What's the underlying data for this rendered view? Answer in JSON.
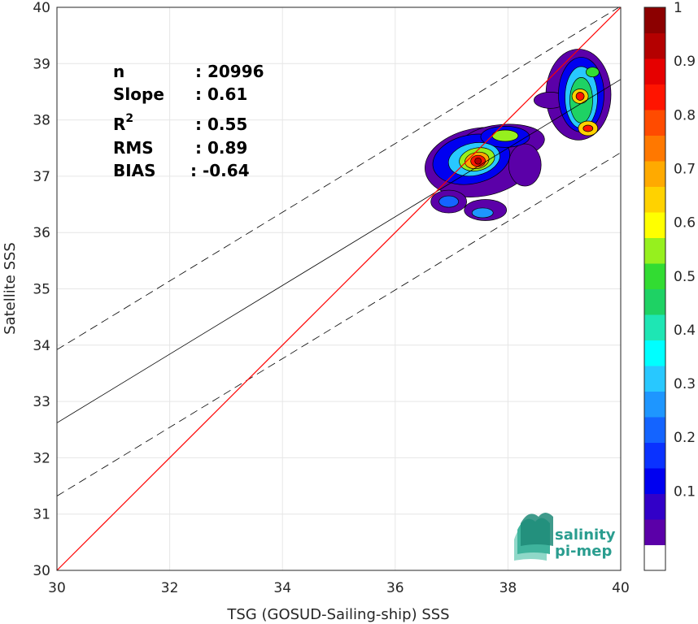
{
  "chart_data": {
    "type": "heatmap",
    "xlabel": "TSG (GOSUD-Sailing-ship) SSS",
    "ylabel": "Satellite SSS",
    "xlim": [
      30,
      40
    ],
    "ylim": [
      30,
      40
    ],
    "x_ticks": [
      "30",
      "32",
      "34",
      "36",
      "38",
      "40"
    ],
    "y_ticks": [
      "30",
      "31",
      "32",
      "33",
      "34",
      "35",
      "36",
      "37",
      "38",
      "39",
      "40"
    ],
    "grid": true,
    "stats": [
      {
        "label": "n",
        "value": ": 20996"
      },
      {
        "label": "Slope",
        "value": ": 0.61"
      },
      {
        "label": "R",
        "sup": "2",
        "value": ": 0.55"
      },
      {
        "label": "RMS",
        "value": ": 0.89"
      },
      {
        "label": "BIAS",
        "value": ": -0.64"
      }
    ],
    "lines": {
      "one_to_one": {
        "color": "#ff0000",
        "from": [
          30,
          30
        ],
        "to": [
          40,
          40
        ]
      },
      "regression": {
        "color": "#000000",
        "slope": 0.61,
        "intercept_at_30": 32.62
      },
      "upper_envelope": {
        "color": "#000000",
        "dashed": true,
        "slope": 0.61,
        "intercept_at_30": 33.92
      },
      "lower_envelope": {
        "color": "#000000",
        "dashed": true,
        "slope": 0.61,
        "intercept_at_30": 31.32
      }
    },
    "colorbar": {
      "ticks": [
        "0.1",
        "0.2",
        "0.3",
        "0.4",
        "0.5",
        "0.6",
        "0.7",
        "0.8",
        "0.9",
        "1"
      ],
      "colors": [
        "#ffffff",
        "#5b00a8",
        "#3200c8",
        "#0000f0",
        "#0a32ff",
        "#1464ff",
        "#1e96ff",
        "#28c8ff",
        "#00ffff",
        "#1ee6b4",
        "#1ed264",
        "#32dc32",
        "#96f01e",
        "#ffff00",
        "#ffd200",
        "#ffaa00",
        "#ff7800",
        "#ff4b00",
        "#ff1400",
        "#e60000",
        "#b40000",
        "#8c0000"
      ]
    },
    "density_clusters": [
      {
        "name": "main",
        "cx": 37.45,
        "cy": 37.3,
        "peak": 0.92
      },
      {
        "name": "upper-right",
        "cx": 39.3,
        "cy": 38.4,
        "peak": 0.9
      }
    ]
  },
  "logo": {
    "line1": "salinity",
    "line2": "pi-mep"
  }
}
